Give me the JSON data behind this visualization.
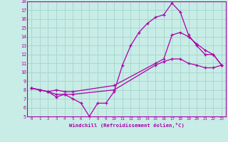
{
  "xlabel": "Windchill (Refroidissement éolien,°C)",
  "bg_color": "#c8ece6",
  "grid_color": "#a8d8d0",
  "line_color": "#aa00aa",
  "xlim": [
    -0.5,
    23.5
  ],
  "ylim": [
    5,
    18
  ],
  "yticks": [
    5,
    6,
    7,
    8,
    9,
    10,
    11,
    12,
    13,
    14,
    15,
    16,
    17,
    18
  ],
  "xticks": [
    0,
    1,
    2,
    3,
    4,
    5,
    6,
    7,
    8,
    9,
    10,
    11,
    12,
    13,
    14,
    15,
    16,
    17,
    18,
    19,
    20,
    21,
    22,
    23
  ],
  "line1_x": [
    0,
    1,
    2,
    3,
    4,
    5,
    6,
    7,
    8,
    9,
    10,
    11,
    12,
    13,
    14,
    15,
    16,
    17,
    18,
    19,
    20,
    21,
    22,
    23
  ],
  "line1_y": [
    8.2,
    8.0,
    7.8,
    7.2,
    7.5,
    7.0,
    6.5,
    5.0,
    6.5,
    6.5,
    7.8,
    10.8,
    13.0,
    14.5,
    15.5,
    16.2,
    16.5,
    17.8,
    16.8,
    14.2,
    13.0,
    12.0,
    12.0,
    10.8
  ],
  "line2_x": [
    0,
    1,
    2,
    3,
    4,
    5,
    10,
    15,
    16,
    17,
    18,
    19,
    20,
    21,
    22,
    23
  ],
  "line2_y": [
    8.2,
    8.0,
    7.8,
    8.0,
    7.8,
    7.8,
    8.5,
    11.0,
    11.5,
    14.2,
    14.5,
    14.0,
    13.2,
    12.5,
    12.0,
    10.8
  ],
  "line3_x": [
    0,
    1,
    2,
    3,
    4,
    5,
    10,
    15,
    16,
    17,
    18,
    19,
    20,
    21,
    22,
    23
  ],
  "line3_y": [
    8.2,
    8.0,
    7.8,
    7.5,
    7.5,
    7.5,
    8.0,
    10.8,
    11.2,
    11.5,
    11.5,
    11.0,
    10.8,
    10.5,
    10.5,
    10.8
  ]
}
